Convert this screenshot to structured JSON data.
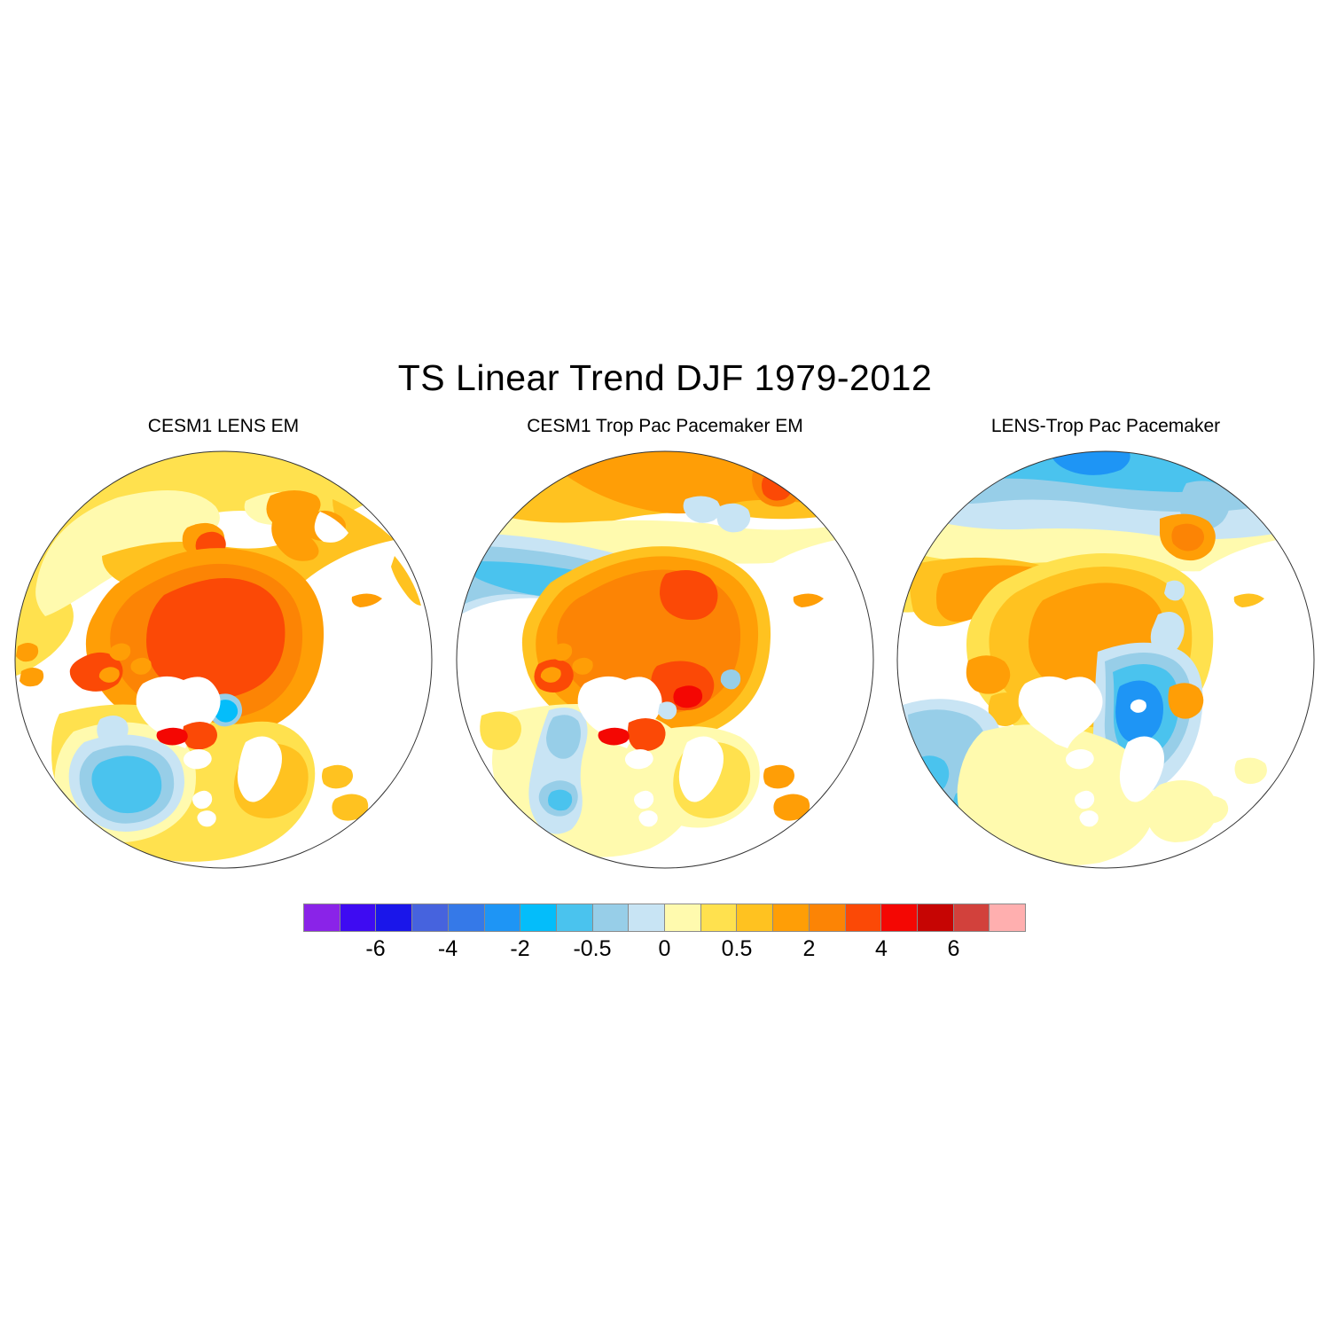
{
  "figure": {
    "title": "TS Linear Trend DJF 1979-2012",
    "background": "#FFFFFF"
  },
  "panels": [
    {
      "id": "lens",
      "title": "CESM1 LENS EM"
    },
    {
      "id": "pacemaker",
      "title": "CESM1 Trop Pac Pacemaker EM"
    },
    {
      "id": "difference",
      "title": "LENS-Trop Pac Pacemaker"
    }
  ],
  "colorbar": {
    "orientation": "horizontal",
    "colors": [
      "#8A23E8",
      "#3E0BF2",
      "#1A16EA",
      "#4663DE",
      "#3579E8",
      "#1E95F5",
      "#04BDFA",
      "#4AC3EE",
      "#97CEE8",
      "#C8E4F4",
      "#FFFAAE",
      "#FFE14E",
      "#FFC220",
      "#FF9E06",
      "#FC8405",
      "#FB4906",
      "#F40703",
      "#C60503",
      "#D2413C",
      "#FFAFAF"
    ],
    "labels": [
      {
        "text": "-6",
        "boundary": 2
      },
      {
        "text": "-4",
        "boundary": 4
      },
      {
        "text": "-2",
        "boundary": 6
      },
      {
        "text": "-0.5",
        "boundary": 8
      },
      {
        "text": "0",
        "boundary": 10
      },
      {
        "text": "0.5",
        "boundary": 12
      },
      {
        "text": "2",
        "boundary": 14
      },
      {
        "text": "4",
        "boundary": 16
      },
      {
        "text": "6",
        "boundary": 18
      }
    ],
    "border_color": "#8A8A8A"
  },
  "palette": {
    "c1": "#8A23E8",
    "c2": "#3E0BF2",
    "c3": "#1A16EA",
    "c4": "#4663DE",
    "c5": "#3579E8",
    "c6": "#1E95F5",
    "c7": "#04BDFA",
    "c8": "#4AC3EE",
    "c9": "#97CEE8",
    "c10": "#C8E4F4",
    "c11": "#FFFAAE",
    "c12": "#FFE14E",
    "c13": "#FFC220",
    "c14": "#FF9E06",
    "c15": "#FC8405",
    "c16": "#FB4906",
    "c17": "#F40703",
    "c18": "#C60503",
    "c19": "#D2413C",
    "c20": "#FFAFAF",
    "white": "#FFFFFF",
    "coast": "#2B2B2B"
  },
  "chart_data": {
    "type": "heatmap",
    "title": "TS Linear Trend DJF 1979-2012",
    "layout": "three north-polar-stereographic map panels sharing one horizontal colorbar",
    "colorbar": {
      "orientation": "horizontal",
      "n_colors": 20,
      "tick_labels": [
        "-6",
        "-4",
        "-2",
        "-0.5",
        "0",
        "0.5",
        "2",
        "4",
        "6"
      ],
      "colors": [
        "#8A23E8",
        "#3E0BF2",
        "#1A16EA",
        "#4663DE",
        "#3579E8",
        "#1E95F5",
        "#04BDFA",
        "#4AC3EE",
        "#97CEE8",
        "#C8E4F4",
        "#FFFAAE",
        "#FFE14E",
        "#FFC220",
        "#FF9E06",
        "#FC8405",
        "#FB4906",
        "#F40703",
        "#C60503",
        "#D2413C",
        "#FFAFAF"
      ]
    },
    "panels": [
      {
        "title": "CESM1 LENS EM",
        "projection": "north polar stereographic",
        "features": [
          "strong warming 2 to 4 over central Arctic Ocean",
          "warming 0.5 to 2 over Siberia, Alaska and Canadian Arctic",
          "local maximum above 4 at the southern tip of Greenland",
          "cooling -0.5 to -2 in the subpolar North Atlantic",
          "near-zero (white) North Pacific and mid-latitude oceans"
        ]
      },
      {
        "title": "CESM1 Trop Pac Pacemaker EM",
        "projection": "north polar stereographic",
        "features": [
          "strong warming 2 to 4 over central Arctic Ocean with maximum above 4 near Barents Sea",
          "cooling band -0.5 to -1 along the East Siberian Arctic coast",
          "warming spot above 4 south of Greenland tip",
          "cooling band -0.5 to -1 in the northwest Atlantic",
          "near-zero (white) North Pacific"
        ]
      },
      {
        "title": "LENS-Trop Pac Pacemaker",
        "projection": "north polar stereographic",
        "features": [
          "moderate residual warming 0.5 to 2 over central Arctic",
          "negative band -0.5 to -2 along the East Siberian Arctic coast",
          "strong negative difference -2 near Svalbard / Barents Sea",
          "weak negative differences -0.5 to -1 in the northwest Atlantic",
          "mostly 0 to 0.5 (pale yellow) over Europe"
        ]
      }
    ]
  }
}
